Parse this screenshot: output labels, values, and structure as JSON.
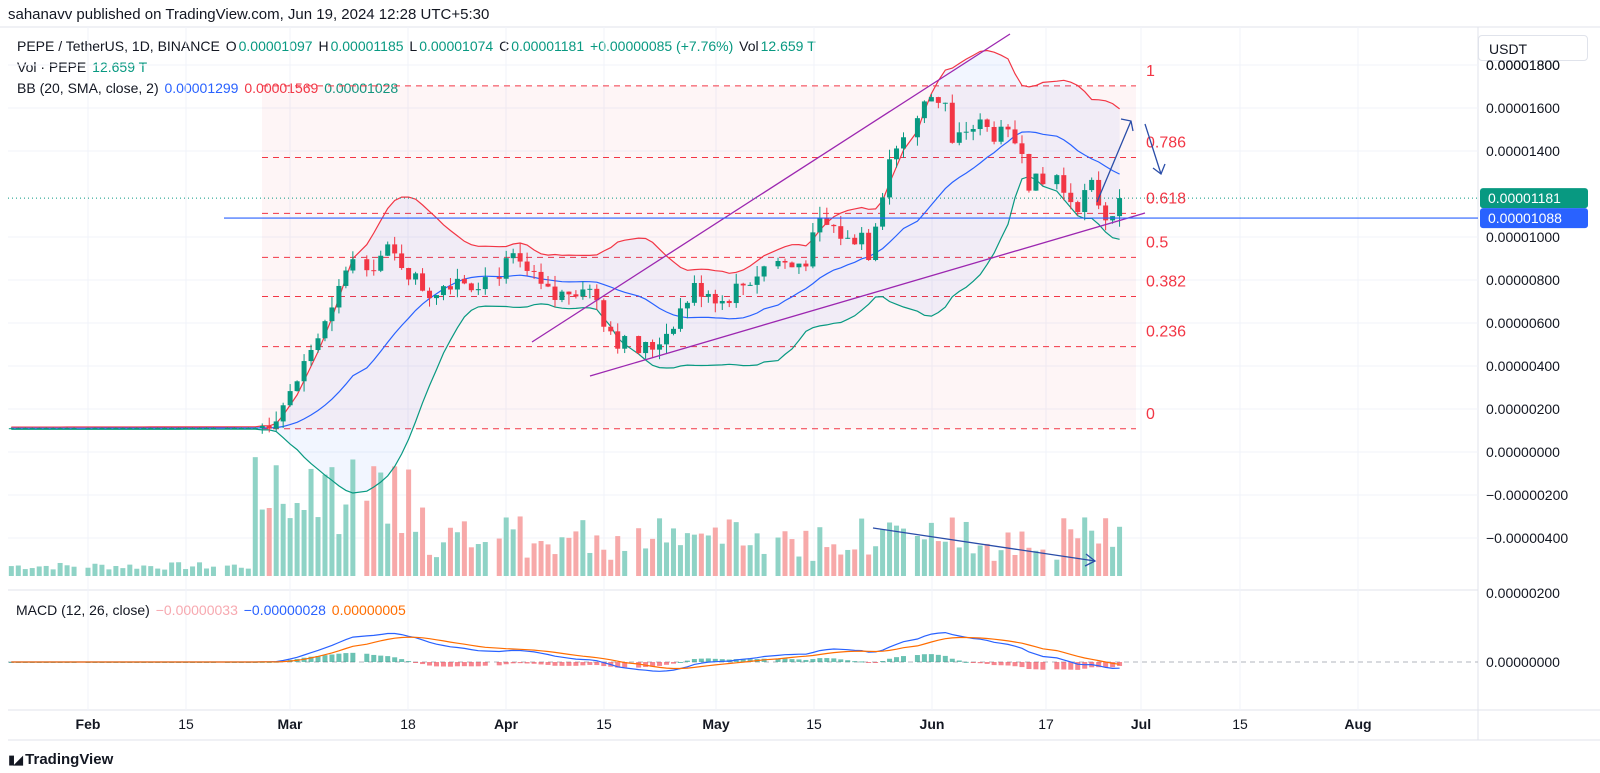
{
  "banner": {
    "published": "sahanavv published on TradingView.com, Jun 19, 2024 12:28 UTC+5:30"
  },
  "legend": {
    "symbol": "PEPE / TetherUS, 1D, BINANCE",
    "o_label": "O",
    "o_value": "0.00001097",
    "h_label": "H",
    "h_value": "0.00001185",
    "l_label": "L",
    "l_value": "0.00001074",
    "c_label": "C",
    "c_value": "0.00001181",
    "change": "+0.00000085 (+7.76%)",
    "vol_label": "Vol",
    "vol_value": "12.659 T",
    "vol_row_label": "Vol · PEPE",
    "vol_row_value": "12.659 T",
    "bb_label": "BB (20, SMA, close, 2)",
    "bb_basis": "0.00001299",
    "bb_upper": "0.00001569",
    "bb_lower": "0.00001028",
    "macd_label": "MACD (12, 26, close)",
    "macd_hist": "−0.00000033",
    "macd_line": "−0.00000028",
    "macd_signal": "0.00000005"
  },
  "unit_selector": "USDT",
  "footer": {
    "brand": "TradingView"
  },
  "colors": {
    "up": "#089981",
    "down": "#f23645",
    "up_vol": "#8fd3c6",
    "down_vol": "#f7a9a9",
    "bb_basis": "#2962ff",
    "bb_upper": "#f23645",
    "bb_lower": "#089981",
    "macd": "#2962ff",
    "signal": "#ff6d00",
    "wedge": "#9c27b0",
    "support": "#2962ff",
    "fib": "#f23645",
    "arrow": "#2a4da8"
  },
  "chart_data": {
    "type": "candlestick",
    "title": "PEPE / TetherUS, 1D, BINANCE",
    "price_axis": {
      "ticks": [
        "0.00001800",
        "0.00001600",
        "0.00001400",
        "0.00001000",
        "0.00000800",
        "0.00000600",
        "0.00000400",
        "0.00000200",
        "0.00000000",
        "−0.00000200",
        "−0.00000400"
      ],
      "tick_values": [
        1.8e-05,
        1.6e-05,
        1.4e-05,
        1e-05,
        8e-06,
        6e-06,
        4e-06,
        2e-06,
        0,
        -2e-06,
        -4e-06
      ]
    },
    "macd_axis": {
      "ticks": [
        "0.00000200",
        "0.00000000"
      ],
      "tick_values": [
        2e-06,
        0
      ]
    },
    "time_axis": {
      "ticks": [
        "Feb",
        "15",
        "Mar",
        "18",
        "Apr",
        "15",
        "May",
        "15",
        "Jun",
        "17",
        "Jul",
        "15",
        "Aug"
      ]
    },
    "last_price": {
      "value": 1.181e-05,
      "label": "0.00001181"
    },
    "support_level": {
      "value": 1.088e-05,
      "label": "0.00001088"
    },
    "fib_levels": [
      {
        "label": "1",
        "value": 1.703e-05
      },
      {
        "label": "0.786",
        "value": 1.37e-05
      },
      {
        "label": "0.618",
        "value": 1.11e-05
      },
      {
        "label": "0.5",
        "value": 9.05e-06
      },
      {
        "label": "0.382",
        "value": 7.23e-06
      },
      {
        "label": "0.236",
        "value": 4.9e-06
      },
      {
        "label": "0",
        "value": 1.08e-06
      }
    ],
    "candles_ohlc": [
      [
        1.12e-06,
        1.13e-06,
        1.08e-06,
        1.1e-06
      ],
      [
        1.1e-06,
        1.1e-06,
        1.1e-06,
        1.1e-06
      ],
      [
        1.1e-06,
        1.1e-06,
        1.1e-06,
        1.1e-06
      ],
      [
        1.1e-06,
        1.1e-06,
        1.1e-06,
        1.1e-06
      ],
      [
        1.1e-06,
        1.1e-06,
        1.1e-06,
        1.1e-06
      ],
      [
        1.1e-06,
        1.1e-06,
        1.1e-06,
        1.1e-06
      ],
      [
        1.1e-06,
        1.1e-06,
        1.1e-06,
        1.1e-06
      ],
      [
        1.1e-06,
        1.1e-06,
        1.1e-06,
        1.1e-06
      ],
      [
        1.1e-06,
        1.1e-06,
        1.1e-06,
        1.1e-06
      ],
      [
        1.1e-06,
        1.1e-06,
        1.1e-06,
        1.1e-06
      ],
      [
        1.1e-06,
        1.1e-06,
        1.1e-06,
        1.1e-06
      ],
      [
        1.1e-06,
        1.1e-06,
        1.1e-06,
        1.1e-06
      ],
      [
        1.1e-06,
        1.1e-06,
        1.1e-06,
        1.1e-06
      ],
      [
        1.1e-06,
        1.1e-06,
        1.1e-06,
        1.1e-06
      ],
      [
        1.1e-06,
        1.1e-06,
        1.1e-06,
        1.1e-06
      ],
      [
        1.1e-06,
        1.1e-06,
        1.1e-06,
        1.1e-06
      ],
      [
        1.1e-06,
        1.1e-06,
        1.1e-06,
        1.1e-06
      ],
      [
        1.1e-06,
        1.1e-06,
        1.1e-06,
        1.1e-06
      ],
      [
        1.1e-06,
        1.1e-06,
        1.1e-06,
        1.1e-06
      ],
      [
        1.1e-06,
        1.1e-06,
        1.1e-06,
        1.1e-06
      ],
      [
        1.1e-06,
        1.1e-06,
        1.1e-06,
        1.1e-06
      ],
      [
        1.1e-06,
        1.1e-06,
        1.1e-06,
        1.1e-06
      ],
      [
        1.1e-06,
        1.1e-06,
        1.1e-06,
        1.1e-06
      ],
      [
        1.1e-06,
        1.1e-06,
        1.1e-06,
        1.1e-06
      ],
      [
        1.1e-06,
        1.1e-06,
        1.1e-06,
        1.1e-06
      ],
      [
        1.1e-06,
        1.2e-06,
        1.1e-06,
        1.2e-06
      ],
      [
        1.2e-06,
        1.3e-06,
        1.2e-06,
        1.3e-06
      ],
      [
        1.3e-06,
        1.4e-06,
        1.3e-06,
        1.4e-06
      ],
      [
        1.4e-06,
        1.5e-06,
        1.4e-06,
        1.5e-06
      ],
      [
        1.5e-06,
        1.6e-06,
        1.5e-06,
        1.6e-06
      ]
    ]
  }
}
